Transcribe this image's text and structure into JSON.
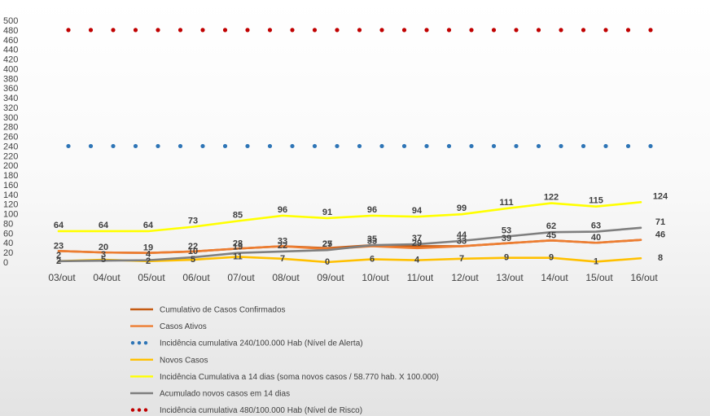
{
  "chart_data": {
    "type": "line",
    "categories": [
      "03/out",
      "04/out",
      "05/out",
      "06/out",
      "07/out",
      "08/out",
      "09/out",
      "10/out",
      "11/out",
      "12/out",
      "13/out",
      "14/out",
      "15/out",
      "16/out"
    ],
    "ylim": [
      0,
      500
    ],
    "yticks": [
      0,
      20,
      40,
      60,
      80,
      100,
      120,
      140,
      160,
      180,
      200,
      220,
      240,
      260,
      280,
      300,
      320,
      340,
      360,
      380,
      400,
      420,
      440,
      460,
      480,
      500
    ],
    "grid": false,
    "legend_position": "bottom-left",
    "series": [
      {
        "name": "Cumulativo de Casos Confirmados",
        "color": "#c55a11",
        "style": "line",
        "values": [
          23,
          20,
          19,
          22,
          28,
          33,
          29,
          35,
          33,
          33,
          39,
          45,
          40,
          46
        ],
        "labels": false
      },
      {
        "name": "Casos Ativos",
        "color": "#ed7d31",
        "style": "line",
        "values": [
          23,
          20,
          19,
          22,
          28,
          33,
          27,
          33,
          29,
          33,
          39,
          45,
          40,
          46
        ],
        "labels": true
      },
      {
        "name": "Incidência cumulativa 240/100.000 Hab (Nível de Alerta)",
        "color": "#2e75b6",
        "style": "dots",
        "values": [
          240,
          240,
          240,
          240,
          240,
          240,
          240,
          240,
          240,
          240,
          240,
          240,
          240,
          240
        ],
        "labels": false
      },
      {
        "name": "Novos Casos",
        "color": "#ffc000",
        "style": "line",
        "values": [
          2,
          5,
          2,
          5,
          11,
          7,
          0,
          6,
          4,
          7,
          9,
          9,
          1,
          8
        ],
        "labels": true
      },
      {
        "name": "Incidência Cumulativa a 14 dias (soma novos casos / 58.770 hab. X 100.000)",
        "color": "#ffff00",
        "style": "line",
        "values": [
          64,
          64,
          64,
          73,
          85,
          96,
          91,
          96,
          94,
          99,
          111,
          122,
          115,
          124
        ],
        "labels": true
      },
      {
        "name": "Acumulado novos casos em 14 dias",
        "color": "#7f7f7f",
        "style": "line",
        "values": [
          2,
          3,
          4,
          10,
          19,
          22,
          25,
          35,
          37,
          44,
          53,
          62,
          63,
          71
        ],
        "labels": true
      },
      {
        "name": "Incidência cumulativa 480/100.000 Hab (Nível de Risco)",
        "color": "#c00000",
        "style": "dots",
        "values": [
          480,
          480,
          480,
          480,
          480,
          480,
          480,
          480,
          480,
          480,
          480,
          480,
          480,
          480
        ],
        "labels": false
      }
    ]
  }
}
